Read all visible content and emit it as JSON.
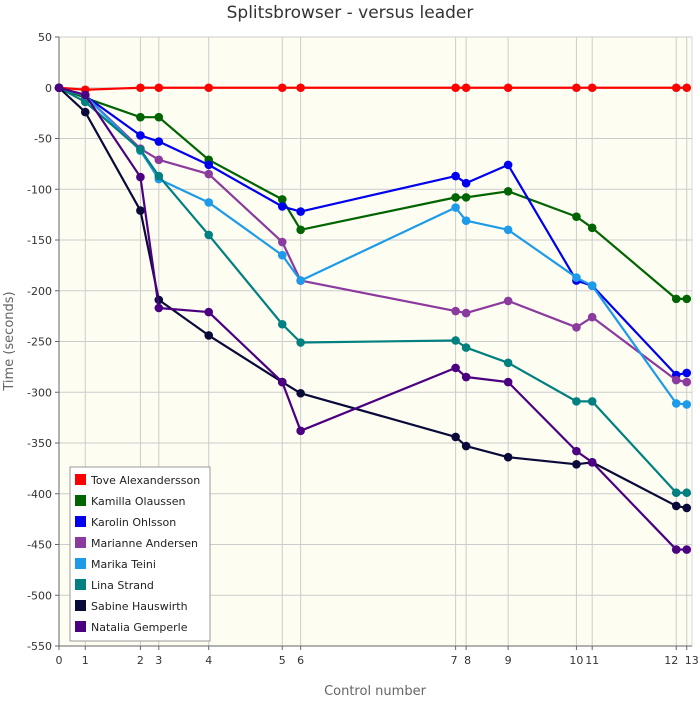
{
  "chart_data": {
    "type": "line",
    "title": "Splitsbrowser - versus leader",
    "xlabel": "Control number",
    "ylabel": "Time (seconds)",
    "xlim": [
      0,
      13.35
    ],
    "ylim": [
      -550,
      50
    ],
    "ytick_step": 50,
    "grid": true,
    "legend_position": "bottom-left",
    "x": [
      0,
      1,
      2,
      3,
      4,
      5,
      6,
      7,
      8,
      9,
      10,
      11,
      12,
      13
    ],
    "x_positions": [
      0,
      1,
      3.1,
      3.8,
      5.7,
      8.5,
      9.2,
      15.1,
      15.5,
      17.1,
      19.7,
      20.3,
      23.5,
      23.9
    ],
    "x_end": 24.1,
    "series": [
      {
        "name": "Tove Alexandersson",
        "color": "#ff0000",
        "values": [
          0,
          -2,
          0,
          0,
          0,
          0,
          0,
          0,
          0,
          0,
          0,
          0,
          0,
          0
        ]
      },
      {
        "name": "Kamilla Olaussen",
        "color": "#006400",
        "values": [
          0,
          -10,
          -29,
          -29,
          -71,
          -110,
          -140,
          -108,
          -108,
          -102,
          -127,
          -138,
          -208,
          -208
        ]
      },
      {
        "name": "Karolin Ohlsson",
        "color": "#0000ee",
        "values": [
          0,
          -8,
          -47,
          -53,
          -76,
          -117,
          -122,
          -87,
          -94,
          -76,
          -190,
          -195,
          -283,
          -281
        ]
      },
      {
        "name": "Marianne Andersen",
        "color": "#8b3a9e",
        "values": [
          0,
          -8,
          -60,
          -71,
          -85,
          -152,
          -190,
          -220,
          -222,
          -210,
          -236,
          -226,
          -288,
          -290
        ]
      },
      {
        "name": "Marika Teini",
        "color": "#1e9be8",
        "values": [
          0,
          -8,
          -62,
          -90,
          -113,
          -165,
          -190,
          -118,
          -131,
          -140,
          -187,
          -195,
          -311,
          -312
        ]
      },
      {
        "name": "Lina Strand",
        "color": "#008080",
        "values": [
          0,
          -14,
          -61,
          -87,
          -145,
          -233,
          -251,
          -249,
          -256,
          -271,
          -309,
          -309,
          -399,
          -399
        ]
      },
      {
        "name": "Sabine Hauswirth",
        "color": "#0a0a3a",
        "values": [
          0,
          -24,
          -121,
          -209,
          -244,
          -290,
          -301,
          -344,
          -353,
          -364,
          -371,
          -369,
          -412,
          -414
        ]
      },
      {
        "name": "Natalia Gemperle",
        "color": "#4b0082",
        "values": [
          0,
          -7,
          -88,
          -217,
          -221,
          -290,
          -338,
          -276,
          -285,
          -290,
          -358,
          -369,
          -455,
          -455
        ]
      }
    ]
  }
}
